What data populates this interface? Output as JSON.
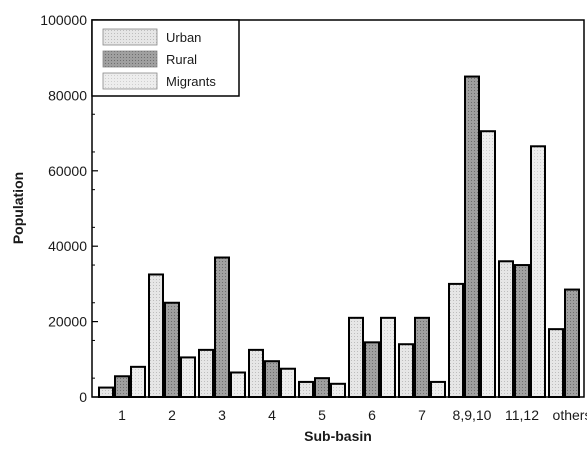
{
  "chart_data": {
    "type": "bar",
    "xlabel": "Sub-basin",
    "ylabel": "Population",
    "ylim": [
      0,
      100000
    ],
    "yticks": [
      0,
      20000,
      40000,
      60000,
      80000,
      100000
    ],
    "grid": false,
    "legend_position": "top-left",
    "categories": [
      "1",
      "2",
      "3",
      "4",
      "5",
      "6",
      "7",
      "8,9,10",
      "11,12",
      "others"
    ],
    "series": [
      {
        "name": "Urban",
        "color": "#d2d2d2",
        "values": [
          2500,
          32500,
          12500,
          12500,
          4000,
          21000,
          14000,
          30000,
          36000,
          18000
        ]
      },
      {
        "name": "Rural",
        "color": "#8f8f8f",
        "values": [
          5500,
          25000,
          37000,
          9500,
          5000,
          14500,
          21000,
          85000,
          35000,
          28500
        ]
      },
      {
        "name": "Migrants",
        "color": "#e2e2e2",
        "values": [
          8000,
          10500,
          6500,
          7500,
          3500,
          21000,
          4000,
          70500,
          66500,
          0
        ]
      }
    ]
  }
}
